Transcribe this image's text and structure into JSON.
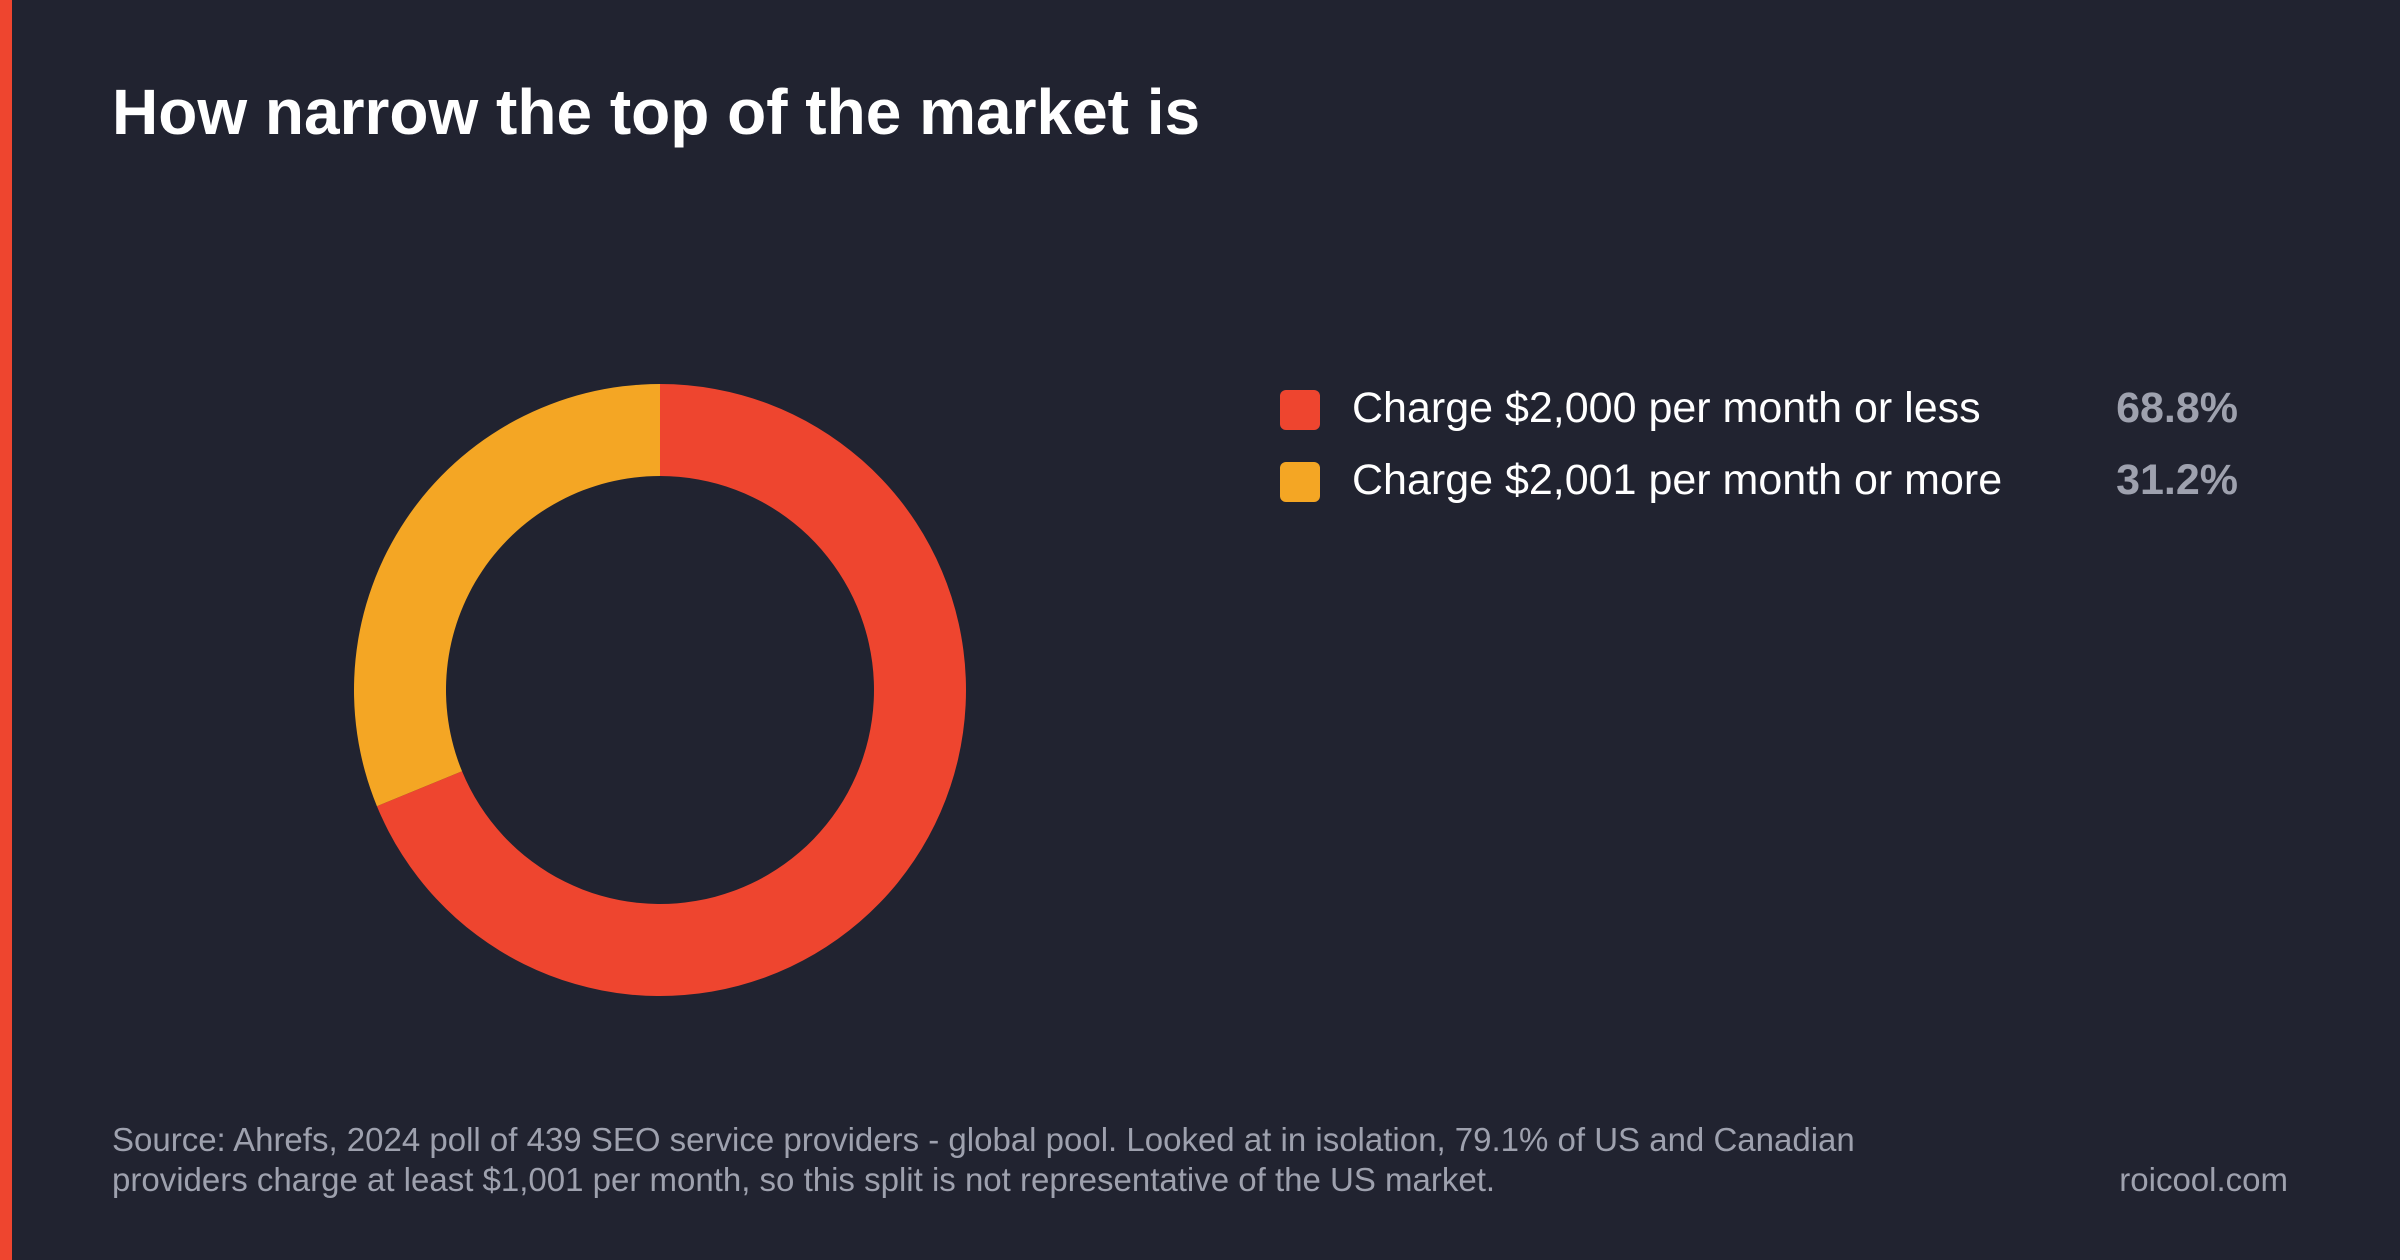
{
  "title": "How narrow the top of the market is",
  "chart_data": {
    "type": "pie",
    "variant": "donut",
    "categories": [
      "Charge $2,000 per month or less",
      "Charge $2,001 per month or more"
    ],
    "values": [
      68.8,
      31.2
    ],
    "value_labels": [
      "68.8%",
      "31.2%"
    ],
    "colors": [
      "#ee452f",
      "#f4a624"
    ],
    "legend_position": "right"
  },
  "footer": {
    "source_line_1": "Source: Ahrefs, 2024 poll of 439 SEO service providers - global pool. Looked at in isolation, 79.1% of US and Canadian",
    "source_line_2": "providers charge at least $1,001 per month, so this split is not representative of the US market.",
    "brand": "roicool.com"
  },
  "theme": {
    "background": "#212330",
    "accent": "#ee452f",
    "muted_text": "#9ea1ae"
  }
}
